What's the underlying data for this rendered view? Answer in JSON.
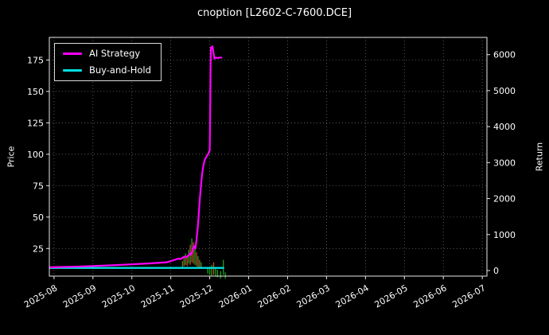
{
  "title": "cnoption [L2602-C-7600.DCE]",
  "chart_data": {
    "type": "line",
    "title": "cnoption [L2602-C-7600.DCE]",
    "background": "#000000",
    "text_color": "#ffffff",
    "grid_color": "#7a7a7a",
    "spine_color": "#e8e8e8",
    "ylabel_left": "Price",
    "ylabel_right": "Return",
    "legend_position": "upper left",
    "grid": "dotted",
    "x_tick_labels": [
      "2025-08",
      "2025-09",
      "2025-10",
      "2025-11",
      "2025-12",
      "2026-01",
      "2026-02",
      "2026-03",
      "2026-04",
      "2026-05",
      "2026-06",
      "2026-07"
    ],
    "xlim": [
      -0.12,
      11.12
    ],
    "ylim_left": [
      3,
      193
    ],
    "ylim_right": [
      -155,
      6480
    ],
    "y_ticks_left": [
      25,
      50,
      75,
      100,
      125,
      150,
      175
    ],
    "y_ticks_right": [
      0,
      1000,
      2000,
      3000,
      4000,
      5000,
      6000
    ],
    "legend": {
      "items": [
        {
          "label": "AI Strategy",
          "color": "#ff00ff"
        },
        {
          "label": "Buy-and-Hold",
          "color": "#00e0e0"
        }
      ]
    },
    "series": [
      {
        "name": "Buy-and-Hold",
        "color": "#00e0e0",
        "axis": "left",
        "width": 2.4,
        "points": [
          [
            -0.1,
            9.5
          ],
          [
            4.35,
            9.5
          ]
        ]
      },
      {
        "name": "AI Strategy",
        "color": "#ff00ff",
        "axis": "left",
        "width": 2.2,
        "points": [
          [
            -0.1,
            10
          ],
          [
            0.5,
            10.5
          ],
          [
            1,
            11
          ],
          [
            1.5,
            11.7
          ],
          [
            2,
            12.4
          ],
          [
            2.5,
            13.2
          ],
          [
            2.9,
            14
          ],
          [
            3.0,
            15
          ],
          [
            3.1,
            16
          ],
          [
            3.15,
            16.5
          ],
          [
            3.2,
            17
          ],
          [
            3.25,
            16.5
          ],
          [
            3.3,
            17.5
          ],
          [
            3.35,
            18.5
          ],
          [
            3.4,
            18
          ],
          [
            3.45,
            19.5
          ],
          [
            3.5,
            21
          ],
          [
            3.52,
            20
          ],
          [
            3.56,
            24
          ],
          [
            3.6,
            27
          ],
          [
            3.63,
            25
          ],
          [
            3.66,
            32
          ],
          [
            3.7,
            44
          ],
          [
            3.73,
            58
          ],
          [
            3.76,
            70
          ],
          [
            3.79,
            80
          ],
          [
            3.82,
            88
          ],
          [
            3.85,
            93
          ],
          [
            3.88,
            96
          ],
          [
            3.9,
            97
          ],
          [
            3.93,
            99
          ],
          [
            3.96,
            100
          ],
          [
            3.98,
            102
          ],
          [
            4.0,
            103
          ],
          [
            4.01,
            130
          ],
          [
            4.02,
            165
          ],
          [
            4.03,
            185
          ],
          [
            4.05,
            184
          ],
          [
            4.07,
            186
          ],
          [
            4.1,
            180
          ],
          [
            4.12,
            176
          ],
          [
            4.15,
            177
          ],
          [
            4.2,
            176.5
          ],
          [
            4.25,
            177
          ],
          [
            4.3,
            177
          ]
        ]
      }
    ],
    "candles": {
      "axis": "left",
      "up_color": "#19a319",
      "down_color": "#d0452f",
      "bars": [
        {
          "x": 3.3,
          "lo": 10,
          "hi": 15,
          "dir": "up"
        },
        {
          "x": 3.34,
          "lo": 11,
          "hi": 18,
          "dir": "down"
        },
        {
          "x": 3.38,
          "lo": 12,
          "hi": 21,
          "dir": "up"
        },
        {
          "x": 3.42,
          "lo": 11,
          "hi": 19,
          "dir": "down"
        },
        {
          "x": 3.46,
          "lo": 13,
          "hi": 24,
          "dir": "up"
        },
        {
          "x": 3.5,
          "lo": 12,
          "hi": 28,
          "dir": "down"
        },
        {
          "x": 3.54,
          "lo": 14,
          "hi": 33,
          "dir": "up"
        },
        {
          "x": 3.58,
          "lo": 13,
          "hi": 30,
          "dir": "down"
        },
        {
          "x": 3.62,
          "lo": 12,
          "hi": 26,
          "dir": "up"
        },
        {
          "x": 3.66,
          "lo": 11,
          "hi": 22,
          "dir": "down"
        },
        {
          "x": 3.7,
          "lo": 10,
          "hi": 19,
          "dir": "up"
        },
        {
          "x": 3.74,
          "lo": 9,
          "hi": 16,
          "dir": "down"
        },
        {
          "x": 3.78,
          "lo": 9,
          "hi": 14,
          "dir": "up"
        },
        {
          "x": 3.95,
          "lo": 5,
          "hi": 10,
          "dir": "up"
        },
        {
          "x": 4.0,
          "lo": 4,
          "hi": 9,
          "dir": "up"
        },
        {
          "x": 4.05,
          "lo": 3,
          "hi": 12,
          "dir": "up"
        },
        {
          "x": 4.1,
          "lo": 4,
          "hi": 14,
          "dir": "down"
        },
        {
          "x": 4.15,
          "lo": 3,
          "hi": 10,
          "dir": "up"
        },
        {
          "x": 4.2,
          "lo": 2,
          "hi": 8,
          "dir": "up"
        },
        {
          "x": 4.28,
          "lo": 1,
          "hi": 7,
          "dir": "up"
        },
        {
          "x": 4.35,
          "lo": 4,
          "hi": 16,
          "dir": "up"
        },
        {
          "x": 4.4,
          "lo": 1,
          "hi": 6,
          "dir": "up"
        }
      ]
    }
  }
}
